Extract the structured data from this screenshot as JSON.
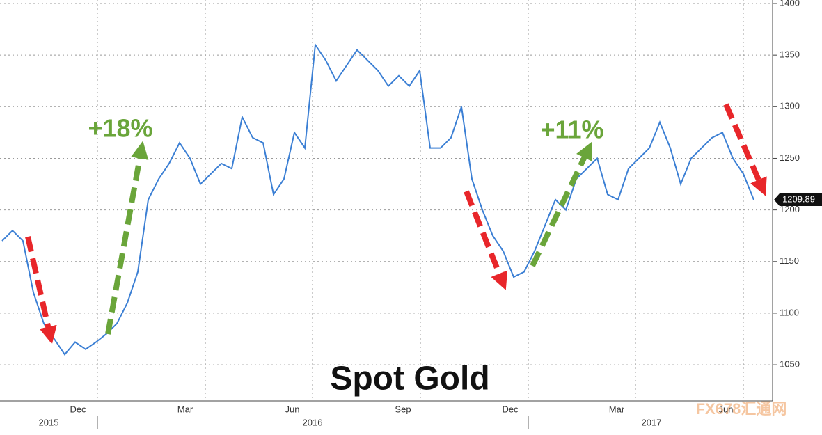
{
  "chart_data": {
    "type": "line",
    "title": "Spot Gold",
    "annotations": [
      "+18%",
      "+11%"
    ],
    "watermark": "FX678汇通网",
    "xticks": [
      "Dec",
      "Mar",
      "Jun",
      "Sep",
      "Dec",
      "Mar",
      "Jun"
    ],
    "years": [
      "2015",
      "2016",
      "2017"
    ],
    "series": [
      {
        "color": "#3b7fd4",
        "values": [
          1170,
          1180,
          1170,
          1120,
          1090,
          1075,
          1060,
          1072,
          1065,
          1072,
          1080,
          1090,
          1110,
          1140,
          1210,
          1230,
          1245,
          1265,
          1250,
          1225,
          1235,
          1245,
          1240,
          1290,
          1270,
          1265,
          1215,
          1230,
          1275,
          1260,
          1360,
          1345,
          1325,
          1340,
          1355,
          1345,
          1335,
          1320,
          1330,
          1320,
          1335,
          1260,
          1260,
          1270,
          1300,
          1230,
          1200,
          1175,
          1160,
          1135,
          1140,
          1160,
          1185,
          1210,
          1200,
          1230,
          1240,
          1250,
          1215,
          1210,
          1240,
          1250,
          1260,
          1285,
          1260,
          1225,
          1250,
          1260,
          1270,
          1275,
          1250,
          1235,
          1209.89
        ]
      }
    ],
    "ylim": [
      1015,
      1400
    ],
    "yticks": [
      1050,
      1100,
      1150,
      1200,
      1250,
      1300,
      1350,
      1400
    ],
    "grid": true
  }
}
